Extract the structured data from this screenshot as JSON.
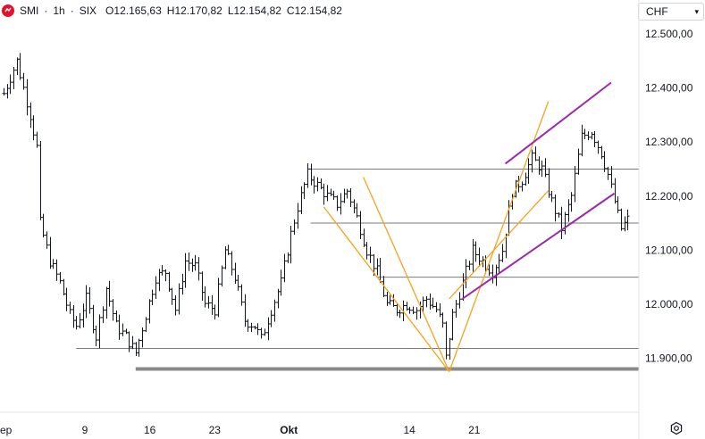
{
  "header": {
    "symbol": "SMI",
    "sep1": "·",
    "interval": "1h",
    "sep2": "·",
    "exchange": "SIX",
    "open_label": "O",
    "open": "12.165,63",
    "high_label": "H",
    "high": "12.170,82",
    "low_label": "L",
    "low": "12.154,82",
    "close_label": "C",
    "close": "12.154,82"
  },
  "currency": "CHF",
  "icons": {
    "logo": "smi-logo-icon",
    "settings": "settings-icon",
    "dropdown": "chevron-down-icon"
  },
  "colors": {
    "candles": "#131722",
    "orange_lines": "#f7a21b",
    "purple_lines": "#9c27b0",
    "grey_lines": "#787b86",
    "support_band": "#8a8a8a"
  },
  "chart_data": {
    "type": "ohlc",
    "y_axis": {
      "min": 11800,
      "max": 12520,
      "ticks": [
        11900,
        12000,
        12100,
        12200,
        12300,
        12400,
        12500
      ],
      "tick_labels": [
        "11.900,00",
        "12.000,00",
        "12.100,00",
        "12.200,00",
        "12.300,00",
        "12.400,00",
        "12.500,00"
      ]
    },
    "x_axis": {
      "labels": [
        "ep",
        "9",
        "16",
        "23",
        "Okt",
        "14",
        "21"
      ],
      "label_dates": [
        "2023-09-01",
        "2023-09-09",
        "2023-09-16",
        "2023-09-23",
        "2023-10-01",
        "2023-10-14",
        "2023-10-21"
      ]
    },
    "bar_count": 190,
    "price_path": [
      [
        0,
        12390
      ],
      [
        4,
        12450
      ],
      [
        8,
        12350
      ],
      [
        10,
        12290
      ],
      [
        11,
        12150
      ],
      [
        14,
        12080
      ],
      [
        17,
        12040
      ],
      [
        20,
        11980
      ],
      [
        22,
        11960
      ],
      [
        25,
        12010
      ],
      [
        28,
        11940
      ],
      [
        31,
        12030
      ],
      [
        34,
        11960
      ],
      [
        37,
        11940
      ],
      [
        40,
        11910
      ],
      [
        43,
        11980
      ],
      [
        46,
        12050
      ],
      [
        49,
        12060
      ],
      [
        52,
        11990
      ],
      [
        55,
        12080
      ],
      [
        58,
        12070
      ],
      [
        61,
        12000
      ],
      [
        64,
        11990
      ],
      [
        67,
        12100
      ],
      [
        70,
        12050
      ],
      [
        73,
        11970
      ],
      [
        76,
        11960
      ],
      [
        78,
        11935
      ],
      [
        81,
        11990
      ],
      [
        84,
        12040
      ],
      [
        87,
        12130
      ],
      [
        89,
        12180
      ],
      [
        92,
        12240
      ],
      [
        95,
        12220
      ],
      [
        98,
        12200
      ],
      [
        101,
        12185
      ],
      [
        104,
        12210
      ],
      [
        107,
        12160
      ],
      [
        110,
        12100
      ],
      [
        113,
        12060
      ],
      [
        116,
        12000
      ],
      [
        119,
        11990
      ],
      [
        122,
        12000
      ],
      [
        125,
        11990
      ],
      [
        128,
        12010
      ],
      [
        131,
        11990
      ],
      [
        133,
        11960
      ],
      [
        134,
        11900
      ],
      [
        136,
        11980
      ],
      [
        139,
        12040
      ],
      [
        142,
        12100
      ],
      [
        145,
        12080
      ],
      [
        148,
        12060
      ],
      [
        151,
        12100
      ],
      [
        154,
        12210
      ],
      [
        157,
        12230
      ],
      [
        160,
        12270
      ],
      [
        163,
        12250
      ],
      [
        166,
        12190
      ],
      [
        169,
        12140
      ],
      [
        172,
        12200
      ],
      [
        175,
        12310
      ],
      [
        178,
        12320
      ],
      [
        181,
        12280
      ],
      [
        183,
        12240
      ],
      [
        185,
        12190
      ],
      [
        187,
        12140
      ],
      [
        190,
        12165
      ]
    ],
    "horizontal_lines": [
      {
        "price": 12250,
        "from_bar": 93,
        "to": "end"
      },
      {
        "price": 12150,
        "from_bar": 93,
        "to": "end"
      },
      {
        "price": 12050,
        "from_bar": 113,
        "to": "end"
      },
      {
        "price": 11918,
        "from_bar": 22,
        "to": "end"
      },
      {
        "price": 11880,
        "from_bar": 40,
        "to": "end",
        "style": "thick"
      }
    ],
    "orange_lines": [
      {
        "from": [
          97,
          12180
        ],
        "to": [
          135,
          11875
        ]
      },
      {
        "from": [
          109,
          12235
        ],
        "to": [
          135,
          11875
        ]
      },
      {
        "from": [
          135,
          11875
        ],
        "to": [
          165,
          12375
        ]
      },
      {
        "from": [
          135,
          12010
        ],
        "to": [
          165,
          12210
        ]
      }
    ],
    "purple_lines": [
      {
        "from": [
          152,
          12260
        ],
        "to": [
          184,
          12410
        ]
      },
      {
        "from": [
          139,
          12010
        ],
        "to": [
          185,
          12205
        ]
      }
    ]
  }
}
